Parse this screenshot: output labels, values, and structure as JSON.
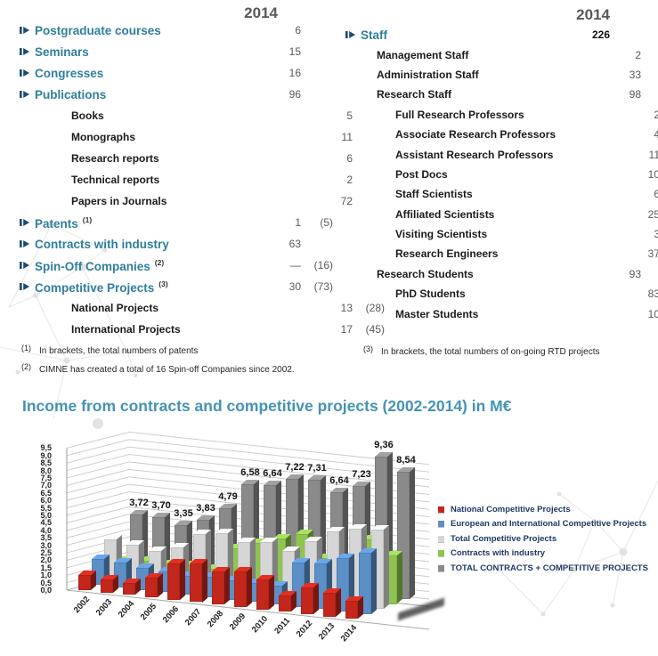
{
  "left_table": {
    "year_header": "2014",
    "rows": [
      {
        "label": "Postgraduate courses",
        "value": "6",
        "bracket": ""
      },
      {
        "label": "Seminars",
        "value": "15",
        "bracket": ""
      },
      {
        "label": "Congresses",
        "value": "16",
        "bracket": ""
      },
      {
        "label": "Publications",
        "value": "96",
        "bracket": ""
      },
      {
        "label": "Books",
        "value": "5",
        "bracket": ""
      },
      {
        "label": "Monographs",
        "value": "11",
        "bracket": ""
      },
      {
        "label": "Research reports",
        "value": "6",
        "bracket": ""
      },
      {
        "label": "Technical reports",
        "value": "2",
        "bracket": ""
      },
      {
        "label": "Papers in Journals",
        "value": "72",
        "bracket": ""
      },
      {
        "label": "Patents",
        "sup": "(1)",
        "value": "1",
        "bracket": "(5)"
      },
      {
        "label": "Contracts with industry",
        "value": "63",
        "bracket": ""
      },
      {
        "label": "Spin-Off Companies",
        "sup": "(2)",
        "value": "—",
        "bracket": "(16)"
      },
      {
        "label": "Competitive Projects",
        "sup": "(3)",
        "value": "30",
        "bracket": "(73)"
      },
      {
        "label": "National Projects",
        "value": "13",
        "bracket": "(28)"
      },
      {
        "label": "International Projects",
        "value": "17",
        "bracket": "(45)"
      }
    ]
  },
  "right_table": {
    "year_header": "2014",
    "rows": [
      {
        "label": "Staff",
        "value": "226"
      },
      {
        "label": "Management Staff",
        "value": "2"
      },
      {
        "label": "Administration Staff",
        "value": "33"
      },
      {
        "label": "Research Staff",
        "value": "98"
      },
      {
        "label": "Full Research Professors",
        "value": "2"
      },
      {
        "label": "Associate Research Professors",
        "value": "4"
      },
      {
        "label": "Assistant Research Professors",
        "value": "11"
      },
      {
        "label": "Post Docs",
        "value": "10"
      },
      {
        "label": "Staff Scientists",
        "value": "6"
      },
      {
        "label": "Affiliated Scientists",
        "value": "25"
      },
      {
        "label": "Visiting Scientists",
        "value": "3"
      },
      {
        "label": "Research Engineers",
        "value": "37"
      },
      {
        "label": "Research Students",
        "value": "93"
      },
      {
        "label": "PhD Students",
        "value": "83"
      },
      {
        "label": "Master Students",
        "value": "10"
      }
    ]
  },
  "footnotes": {
    "fn1_mark": "(1)",
    "fn1_text": "In brackets, the total numbers of patents",
    "fn2_mark": "(2)",
    "fn2_text": "CIMNE has created a total of 16 Spin-off Companies since 2002.",
    "fn3_mark": "(3)",
    "fn3_text": "In brackets, the total numbers of on-going RTD projects"
  },
  "chart_title": "Income from contracts and competitive projects (2002-2014) in M€",
  "chart_data": {
    "type": "bar",
    "subtype": "3d-bar",
    "title": "Income from contracts and competitive projects (2002-2014) in M€",
    "unit": "M€",
    "categories": [
      "2002",
      "2003",
      "2004",
      "2005",
      "2006",
      "2007",
      "2008",
      "2009",
      "2010",
      "2011",
      "2012",
      "2013",
      "2014"
    ],
    "series": [
      {
        "name": "National Competitive Projects",
        "color": "#C3271C",
        "values": [
          1.0,
          0.9,
          0.8,
          1.3,
          2.45,
          2.6,
          2.2,
          2.4,
          2.0,
          1.1,
          1.8,
          1.6,
          1.2
        ]
      },
      {
        "name": "European and International Competitive Projects",
        "color": "#5B8FC8",
        "values": [
          1.75,
          1.65,
          1.5,
          1.4,
          1.25,
          1.35,
          1.3,
          1.25,
          1.25,
          2.95,
          3.05,
          3.6,
          4.1
        ]
      },
      {
        "name": "Total Competitive Projects",
        "color": "#D6D6D6",
        "values": [
          2.75,
          2.55,
          2.3,
          2.7,
          3.7,
          3.95,
          3.5,
          3.65,
          3.25,
          4.05,
          4.85,
          5.2,
          5.3
        ]
      },
      {
        "name": "Contracts with industry",
        "color": "#8FC450",
        "values": [
          0.97,
          1.15,
          1.05,
          1.13,
          1.09,
          2.63,
          3.14,
          3.57,
          4.06,
          2.59,
          2.38,
          4.16,
          3.24
        ]
      },
      {
        "name": "TOTAL CONTRACTS + COMPETITIVE PROJECTS",
        "color": "#8A8A8A",
        "values": [
          3.72,
          3.7,
          3.35,
          3.83,
          4.79,
          6.58,
          6.64,
          7.22,
          7.31,
          6.64,
          7.23,
          9.36,
          8.54
        ],
        "labels": [
          "3,72",
          "3,70",
          "3,35",
          "3,83",
          "4,79",
          "6,58",
          "6,64",
          "7,22",
          "7,31",
          "6,64",
          "7,23",
          "9,36",
          "8,54"
        ]
      }
    ],
    "ylim": [
      0,
      9.5
    ],
    "ytick_step": 0.5,
    "decimal_separator": "comma",
    "grid": true,
    "legend_position": "right"
  }
}
